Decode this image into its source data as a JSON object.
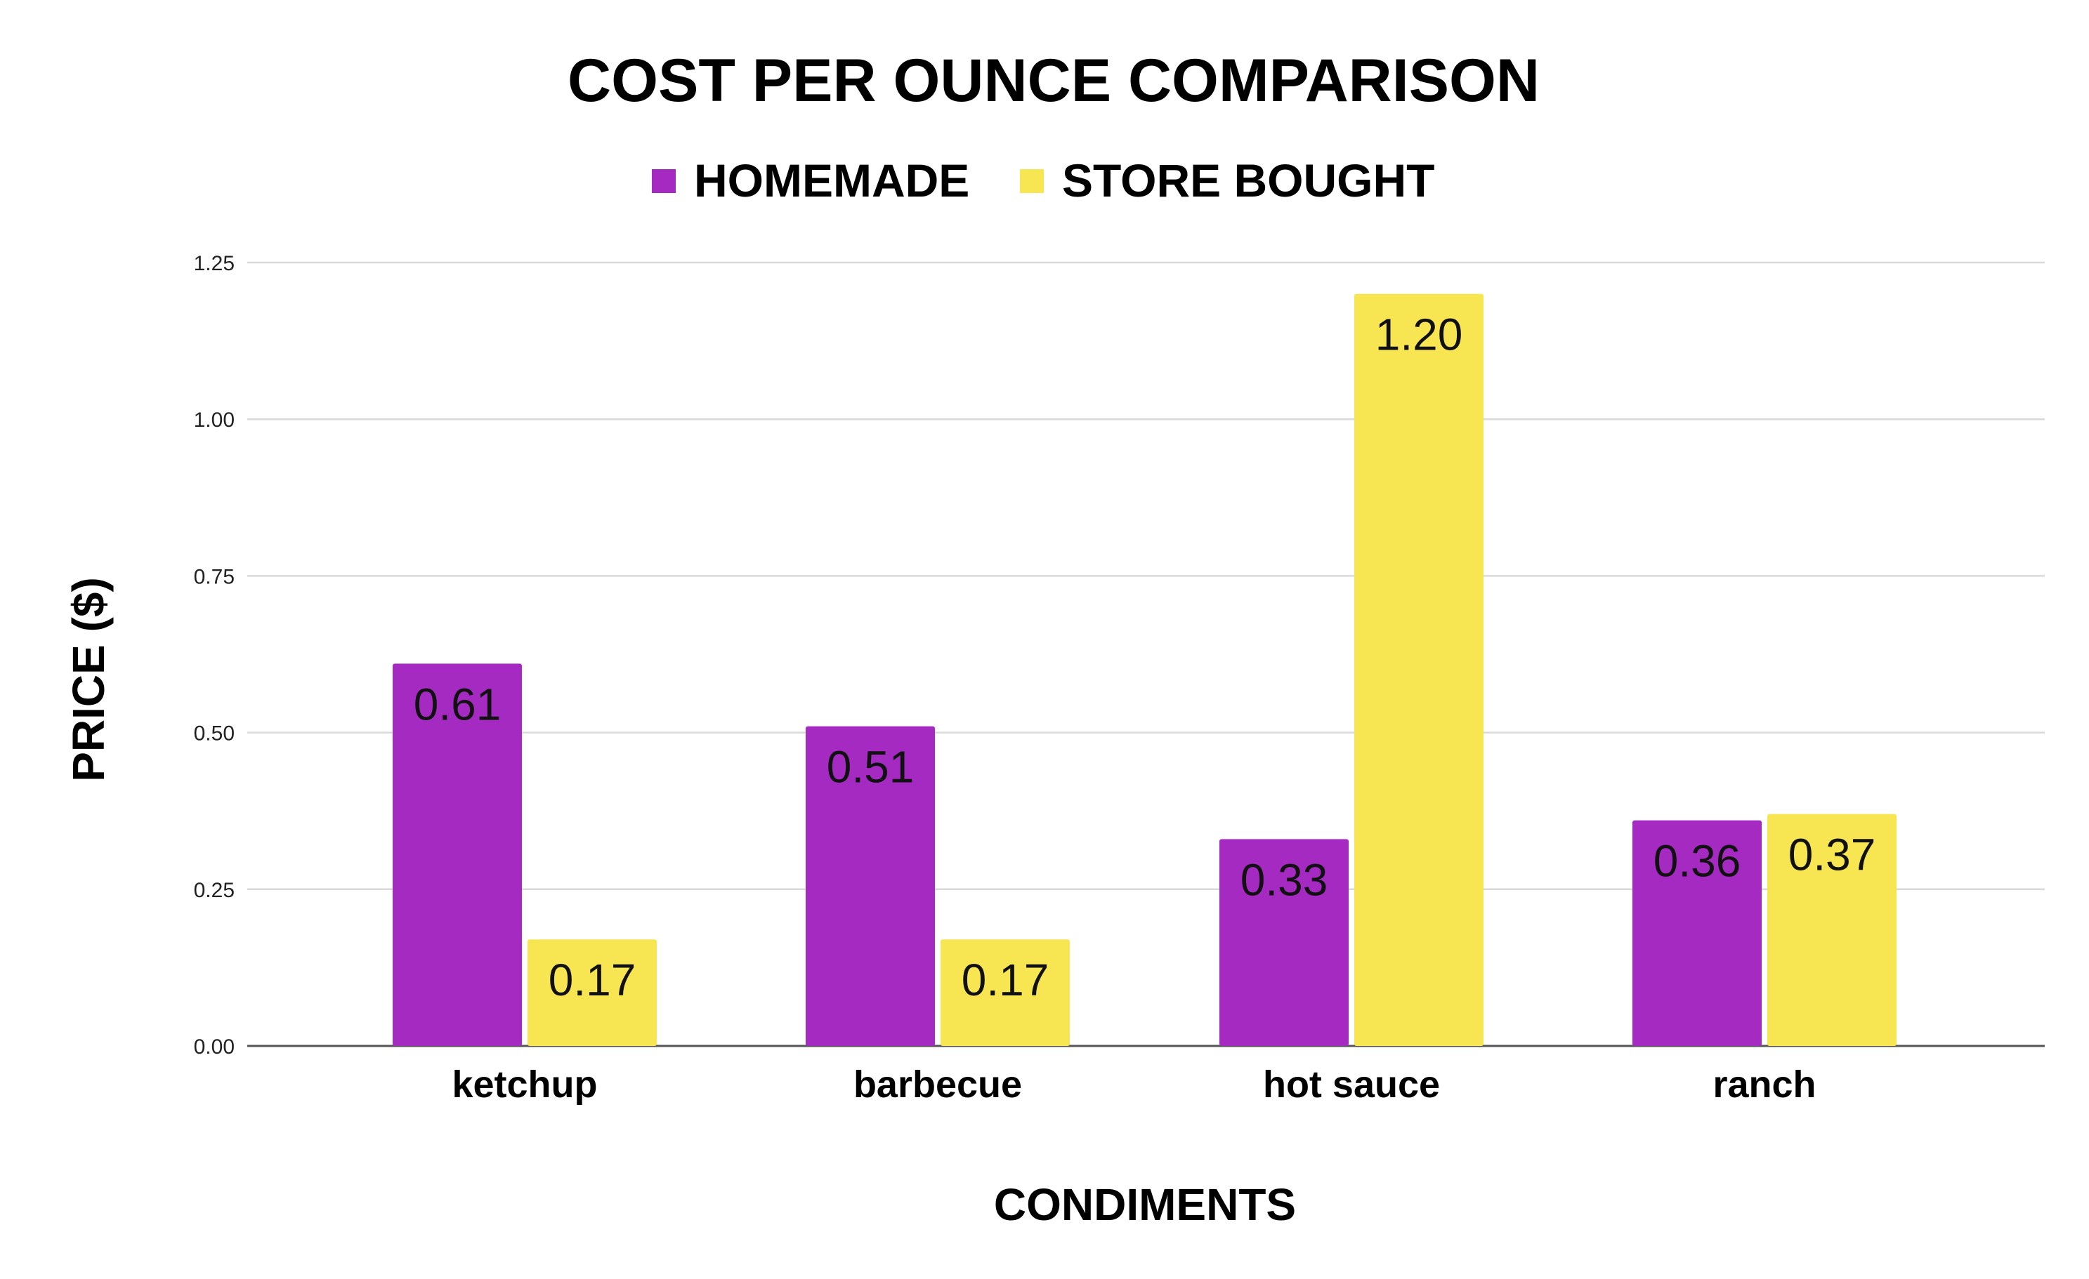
{
  "chart_data": {
    "type": "bar",
    "title": "COST PER OUNCE COMPARISON",
    "xlabel": "CONDIMENTS",
    "ylabel": "PRICE ($)",
    "categories": [
      "ketchup",
      "barbecue",
      "hot sauce",
      "ranch"
    ],
    "series": [
      {
        "name": "HOMEMADE",
        "color": "#A52AC2",
        "values": [
          0.61,
          0.51,
          0.33,
          0.36
        ],
        "labels": [
          "0.61",
          "0.51",
          "0.33",
          "0.36"
        ]
      },
      {
        "name": "STORE BOUGHT",
        "color": "#F7E652",
        "values": [
          0.17,
          0.17,
          1.2,
          0.37
        ],
        "labels": [
          "0.17",
          "0.17",
          "1.20",
          "0.37"
        ]
      }
    ],
    "ylim": [
      0,
      1.25
    ],
    "yticks": [
      "0.00",
      "0.25",
      "0.50",
      "0.75",
      "1.00",
      "1.25"
    ],
    "grid": true,
    "legend_position": "top"
  }
}
